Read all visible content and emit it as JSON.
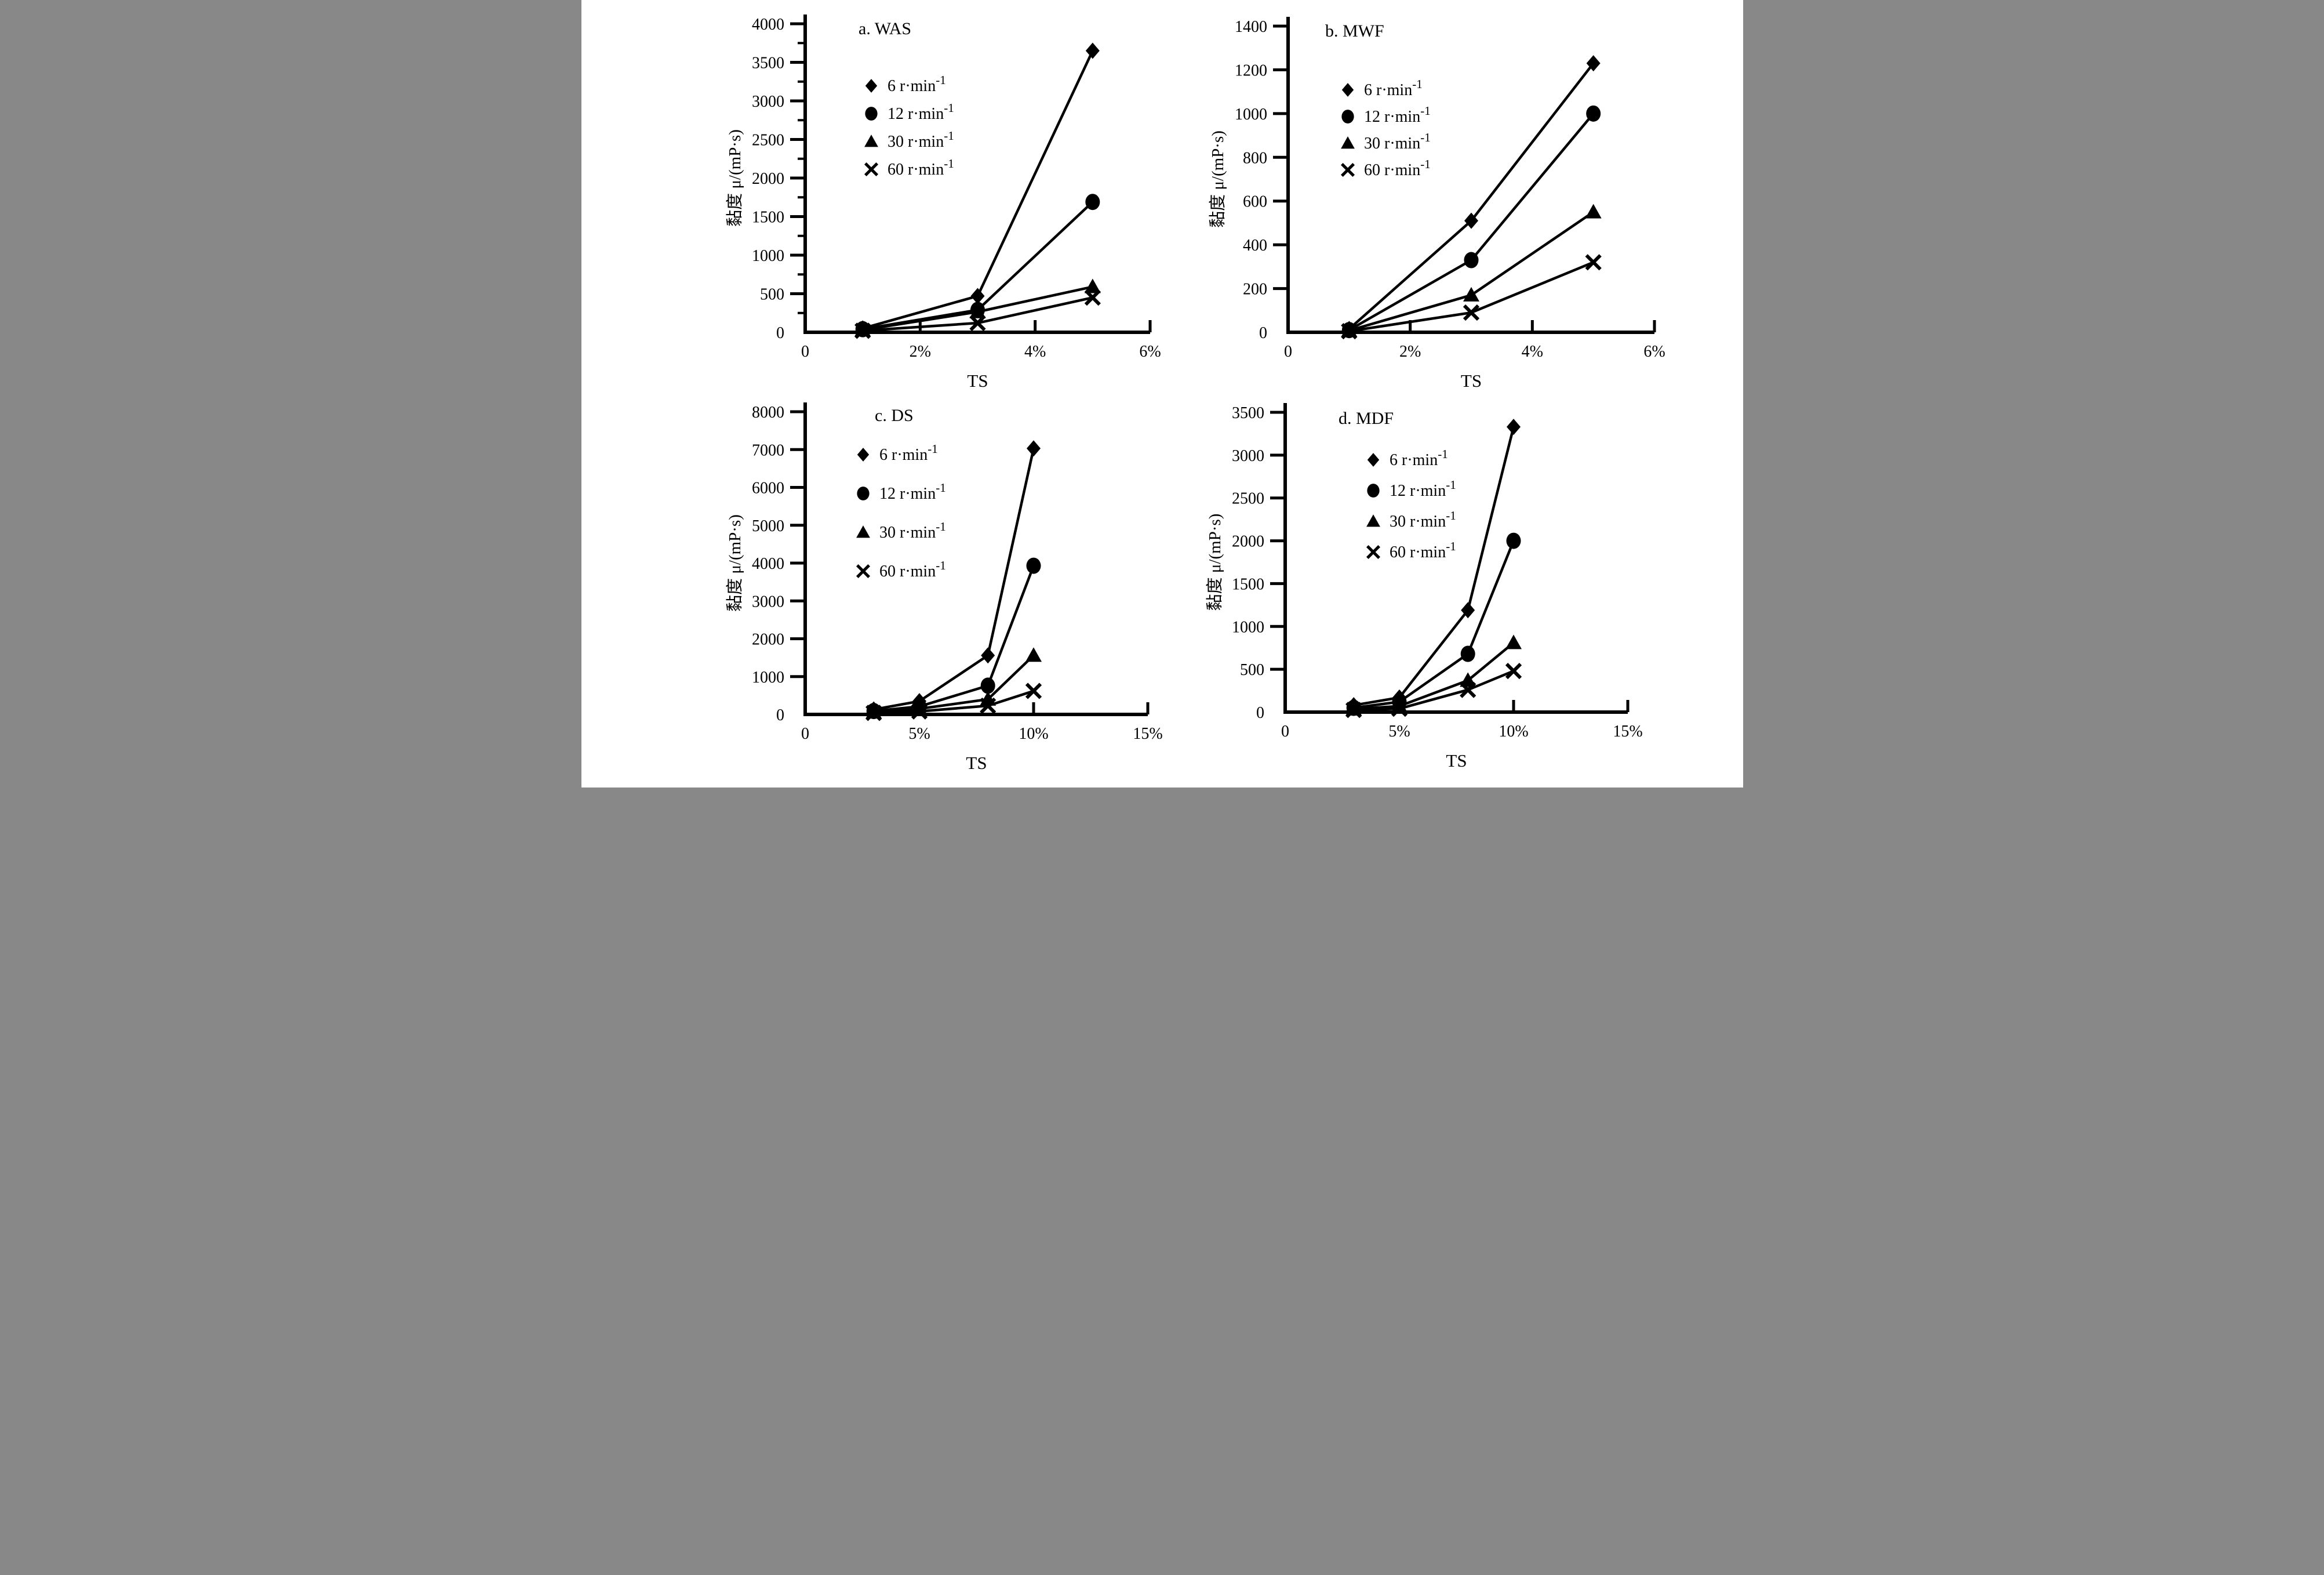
{
  "page": {
    "background": "#ffffff",
    "ink_color": "#000000"
  },
  "figure": {
    "xlabel": "TS",
    "ylabel": "黏度 μ/(mP·s)",
    "legend": [
      {
        "marker": "diamond",
        "label": "6 r·min⁻¹"
      },
      {
        "marker": "circle",
        "label": "12 r·min⁻¹"
      },
      {
        "marker": "triangle",
        "label": "30 r·min⁻¹"
      },
      {
        "marker": "x",
        "label": "60 r·min⁻¹"
      }
    ]
  },
  "chart_data": [
    {
      "id": "a",
      "type": "line",
      "title": "a. WAS",
      "xlabel": "TS",
      "ylabel": "黏度 μ/(mP·s)",
      "xlim": [
        0,
        6
      ],
      "ylim": [
        0,
        4000
      ],
      "y_minor_step": 250,
      "x_ticks": [
        {
          "v": 0,
          "label": "0"
        },
        {
          "v": 2,
          "label": "2%"
        },
        {
          "v": 4,
          "label": "4%"
        },
        {
          "v": 6,
          "label": "6%"
        }
      ],
      "y_ticks": [
        {
          "v": 0,
          "label": "0"
        },
        {
          "v": 500,
          "label": "500"
        },
        {
          "v": 1000,
          "label": "1000"
        },
        {
          "v": 1500,
          "label": "1500"
        },
        {
          "v": 2000,
          "label": "2000"
        },
        {
          "v": 2500,
          "label": "2500"
        },
        {
          "v": 3000,
          "label": "3000"
        },
        {
          "v": 3500,
          "label": "3500"
        },
        {
          "v": 4000,
          "label": "4000"
        }
      ],
      "x": [
        1,
        3,
        5
      ],
      "series": [
        {
          "name": "6 r·min⁻¹",
          "marker": "diamond",
          "values": [
            50,
            470,
            3650
          ]
        },
        {
          "name": "12 r·min⁻¹",
          "marker": "circle",
          "values": [
            40,
            290,
            1690
          ]
        },
        {
          "name": "30 r·min⁻¹",
          "marker": "triangle",
          "values": [
            30,
            265,
            590
          ]
        },
        {
          "name": "60 r·min⁻¹",
          "marker": "x",
          "values": [
            20,
            120,
            450
          ]
        }
      ],
      "legend_position": "upper-left",
      "grid": false
    },
    {
      "id": "b",
      "type": "line",
      "title": "b. MWF",
      "xlabel": "TS",
      "ylabel": "黏度 μ/(mP·s)",
      "xlim": [
        0,
        6
      ],
      "ylim": [
        0,
        1400
      ],
      "x_ticks": [
        {
          "v": 0,
          "label": "0"
        },
        {
          "v": 2,
          "label": "2%"
        },
        {
          "v": 4,
          "label": "4%"
        },
        {
          "v": 6,
          "label": "6%"
        }
      ],
      "y_ticks": [
        {
          "v": 0,
          "label": "0"
        },
        {
          "v": 200,
          "label": "200"
        },
        {
          "v": 400,
          "label": "400"
        },
        {
          "v": 600,
          "label": "600"
        },
        {
          "v": 800,
          "label": "800"
        },
        {
          "v": 1000,
          "label": "1000"
        },
        {
          "v": 1200,
          "label": "1200"
        },
        {
          "v": 1400,
          "label": "1400"
        }
      ],
      "x": [
        1,
        3,
        5
      ],
      "series": [
        {
          "name": "6 r·min⁻¹",
          "marker": "diamond",
          "values": [
            15,
            510,
            1230
          ]
        },
        {
          "name": "12 r·min⁻¹",
          "marker": "circle",
          "values": [
            10,
            330,
            1000
          ]
        },
        {
          "name": "30 r·min⁻¹",
          "marker": "triangle",
          "values": [
            8,
            170,
            550
          ]
        },
        {
          "name": "60 r·min⁻¹",
          "marker": "x",
          "values": [
            5,
            90,
            320
          ]
        }
      ],
      "legend_position": "upper-left",
      "grid": false
    },
    {
      "id": "c",
      "type": "line",
      "title": "c. DS",
      "xlabel": "TS",
      "ylabel": "黏度 μ/(mP·s)",
      "xlim": [
        0,
        15
      ],
      "ylim": [
        0,
        8000
      ],
      "x_ticks": [
        {
          "v": 0,
          "label": "0"
        },
        {
          "v": 5,
          "label": "5%"
        },
        {
          "v": 10,
          "label": "10%"
        },
        {
          "v": 15,
          "label": "15%"
        }
      ],
      "y_ticks": [
        {
          "v": 0,
          "label": "0"
        },
        {
          "v": 1000,
          "label": "1000"
        },
        {
          "v": 2000,
          "label": "2000"
        },
        {
          "v": 3000,
          "label": "3000"
        },
        {
          "v": 4000,
          "label": "4000"
        },
        {
          "v": 5000,
          "label": "5000"
        },
        {
          "v": 6000,
          "label": "6000"
        },
        {
          "v": 7000,
          "label": "7000"
        },
        {
          "v": 8000,
          "label": "8000"
        }
      ],
      "x": [
        3,
        5,
        8,
        10
      ],
      "series": [
        {
          "name": "6 r·min⁻¹",
          "marker": "diamond",
          "values": [
            130,
            350,
            1560,
            7030
          ]
        },
        {
          "name": "12 r·min⁻¹",
          "marker": "circle",
          "values": [
            90,
            210,
            760,
            3930
          ]
        },
        {
          "name": "30 r·min⁻¹",
          "marker": "triangle",
          "values": [
            60,
            150,
            400,
            1560
          ]
        },
        {
          "name": "60 r·min⁻¹",
          "marker": "x",
          "values": [
            40,
            80,
            230,
            620
          ]
        }
      ],
      "legend_position": "upper-left",
      "grid": false
    },
    {
      "id": "d",
      "type": "line",
      "title": "d. MDF",
      "xlabel": "TS",
      "ylabel": "黏度 μ/(mP·s)",
      "xlim": [
        0,
        15
      ],
      "ylim": [
        0,
        3500
      ],
      "x_ticks": [
        {
          "v": 0,
          "label": "0"
        },
        {
          "v": 5,
          "label": "5%"
        },
        {
          "v": 10,
          "label": "10%"
        },
        {
          "v": 15,
          "label": "15%"
        }
      ],
      "y_ticks": [
        {
          "v": 0,
          "label": "0"
        },
        {
          "v": 500,
          "label": "500"
        },
        {
          "v": 1000,
          "label": "1000"
        },
        {
          "v": 1500,
          "label": "1500"
        },
        {
          "v": 2000,
          "label": "2000"
        },
        {
          "v": 2500,
          "label": "2500"
        },
        {
          "v": 3000,
          "label": "3000"
        },
        {
          "v": 3500,
          "label": "3500"
        }
      ],
      "x": [
        3,
        5,
        8,
        10
      ],
      "series": [
        {
          "name": "6 r·min⁻¹",
          "marker": "diamond",
          "values": [
            80,
            170,
            1190,
            3330
          ]
        },
        {
          "name": "12 r·min⁻¹",
          "marker": "circle",
          "values": [
            50,
            120,
            680,
            2000
          ]
        },
        {
          "name": "30 r·min⁻¹",
          "marker": "triangle",
          "values": [
            35,
            70,
            370,
            810
          ]
        },
        {
          "name": "60 r·min⁻¹",
          "marker": "x",
          "values": [
            25,
            40,
            260,
            480
          ]
        }
      ],
      "legend_position": "upper-left",
      "grid": false
    }
  ]
}
